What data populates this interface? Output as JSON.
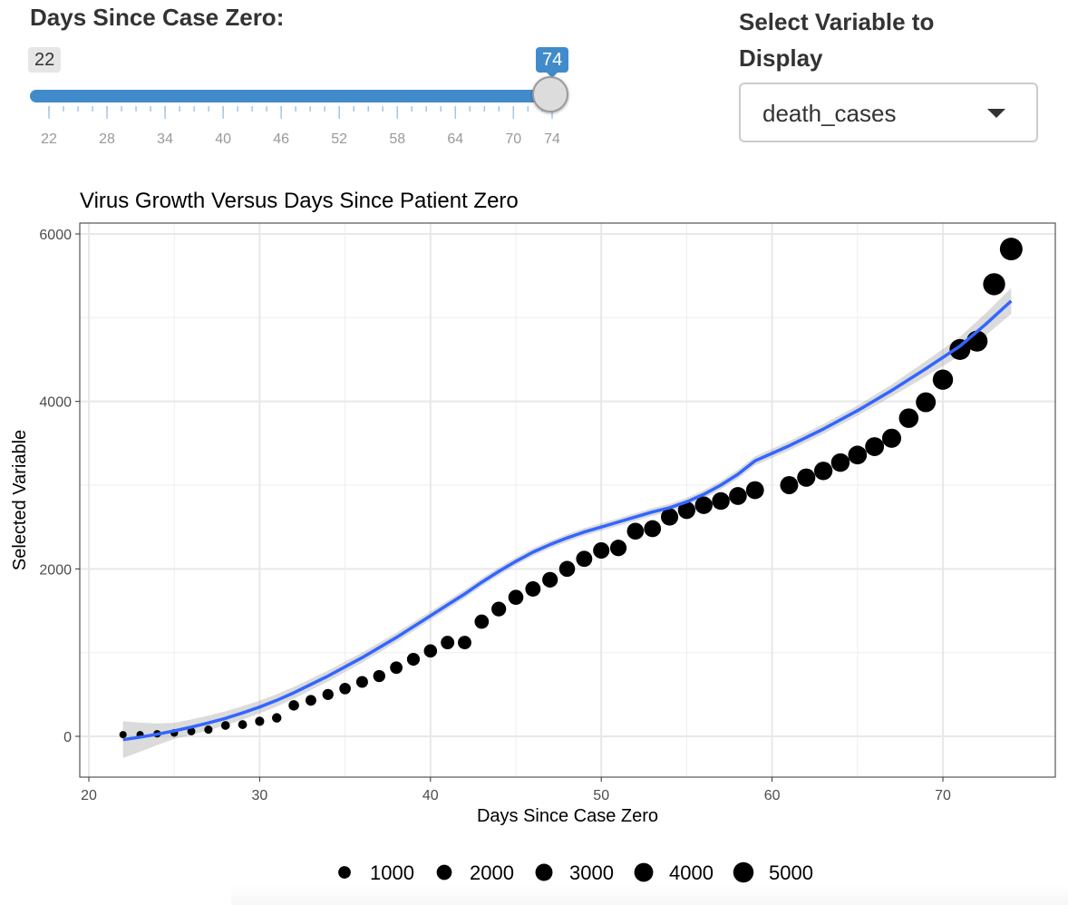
{
  "controls": {
    "slider": {
      "label": "Days Since Case Zero:",
      "min": 22,
      "max": 74,
      "selected_min": 22,
      "selected_max": 74,
      "ticks": [
        "22",
        "28",
        "34",
        "40",
        "46",
        "52",
        "58",
        "64",
        "70",
        "74"
      ],
      "accent_color": "#428bca"
    },
    "select": {
      "label": "Select Variable to Display",
      "value": "death_cases"
    }
  },
  "chart_data": {
    "type": "scatter",
    "title": "Virus Growth Versus Days Since Patient Zero",
    "xlabel": "Days Since Case Zero",
    "ylabel": "Selected Variable",
    "xlim": [
      20,
      74
    ],
    "ylim": [
      0,
      6000
    ],
    "x_ticks": [
      20,
      30,
      40,
      50,
      60,
      70
    ],
    "y_ticks": [
      0,
      2000,
      4000,
      6000
    ],
    "grid": true,
    "point_color": "#000000",
    "smooth_color": "#3366ff",
    "x": [
      22,
      23,
      24,
      25,
      26,
      27,
      28,
      29,
      30,
      31,
      32,
      33,
      34,
      35,
      36,
      37,
      38,
      39,
      40,
      41,
      42,
      43,
      44,
      45,
      46,
      47,
      48,
      49,
      50,
      51,
      52,
      53,
      54,
      55,
      56,
      57,
      58,
      59,
      61,
      62,
      63,
      64,
      65,
      66,
      67,
      68,
      69,
      70,
      71,
      72,
      73,
      74
    ],
    "y": [
      20,
      20,
      30,
      40,
      60,
      80,
      130,
      140,
      180,
      220,
      370,
      430,
      500,
      570,
      650,
      720,
      820,
      920,
      1020,
      1120,
      1120,
      1370,
      1520,
      1660,
      1760,
      1870,
      2000,
      2120,
      2220,
      2250,
      2450,
      2480,
      2620,
      2700,
      2760,
      2810,
      2870,
      2940,
      3000,
      3090,
      3170,
      3270,
      3360,
      3460,
      3560,
      3800,
      3990,
      4260,
      4620,
      4720,
      5400,
      5820
    ],
    "smooth_y": [
      -40,
      -10,
      25,
      65,
      110,
      160,
      215,
      280,
      350,
      430,
      520,
      620,
      720,
      830,
      940,
      1060,
      1180,
      1310,
      1440,
      1570,
      1700,
      1840,
      1970,
      2090,
      2200,
      2290,
      2370,
      2440,
      2500,
      2560,
      2620,
      2680,
      2730,
      2800,
      2890,
      3000,
      3130,
      3290,
      3470,
      3670,
      3890,
      4130,
      4390,
      4660,
      4920,
      5200
    ],
    "smooth_x": [
      22,
      23,
      24,
      25,
      26,
      27,
      28,
      29,
      30,
      31,
      32,
      33,
      34,
      35,
      36,
      37,
      38,
      39,
      40,
      41,
      42,
      43,
      44,
      45,
      46,
      47,
      48,
      49,
      50,
      51,
      52,
      53,
      54,
      55,
      56,
      57,
      58,
      59,
      61,
      63,
      65,
      67,
      69,
      71,
      72.5,
      74
    ],
    "legend": {
      "position": "bottom",
      "values": [
        1000,
        2000,
        3000,
        4000,
        5000
      ],
      "labels": [
        "1000",
        "2000",
        "3000",
        "4000",
        "5000"
      ]
    }
  }
}
